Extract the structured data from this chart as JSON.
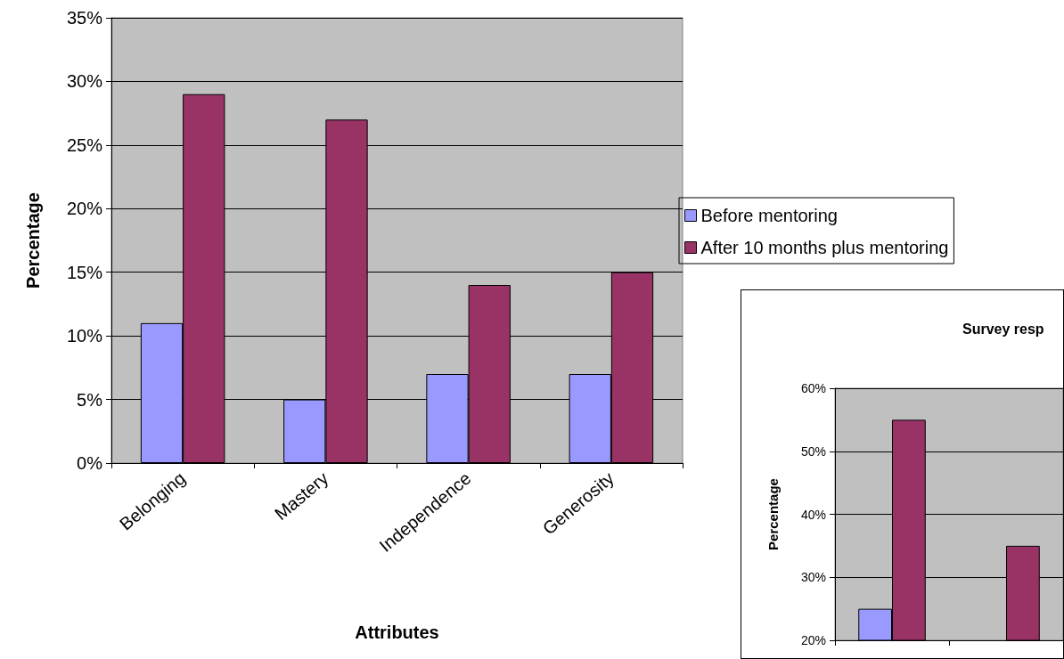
{
  "chart_data": [
    {
      "type": "bar",
      "xlabel": "Attributes",
      "ylabel": "Percentage",
      "categories": [
        "Belonging",
        "Mastery",
        "Independence",
        "Generosity"
      ],
      "series": [
        {
          "name": "Before mentoring",
          "color": "#9999ff",
          "values": [
            11,
            5,
            7,
            7
          ]
        },
        {
          "name": "After 10 months plus mentoring",
          "color": "#993366",
          "values": [
            29,
            27,
            14,
            15
          ]
        }
      ],
      "ylim": [
        0,
        35
      ],
      "yticks": [
        {
          "value": 0,
          "label": "0%"
        },
        {
          "value": 5,
          "label": "5%"
        },
        {
          "value": 10,
          "label": "10%"
        },
        {
          "value": 15,
          "label": "15%"
        },
        {
          "value": 20,
          "label": "20%"
        },
        {
          "value": 25,
          "label": "25%"
        },
        {
          "value": 30,
          "label": "30%"
        },
        {
          "value": 35,
          "label": "35%"
        }
      ],
      "grid": "y",
      "legend": "right"
    },
    {
      "type": "bar",
      "title": "Survey resp",
      "ylabel": "Percentage",
      "categories": [
        null,
        null
      ],
      "series": [
        {
          "color": "#9999ff",
          "values": [
            25,
            null
          ]
        },
        {
          "color": "#993366",
          "values": [
            55,
            35
          ]
        }
      ],
      "ylim": [
        20,
        60
      ],
      "yticks": [
        {
          "value": 20,
          "label": "20%"
        },
        {
          "value": 30,
          "label": "30%"
        },
        {
          "value": 40,
          "label": "40%"
        },
        {
          "value": 50,
          "label": "50%"
        },
        {
          "value": 60,
          "label": "60%"
        }
      ],
      "grid": "y",
      "legend": false
    }
  ]
}
